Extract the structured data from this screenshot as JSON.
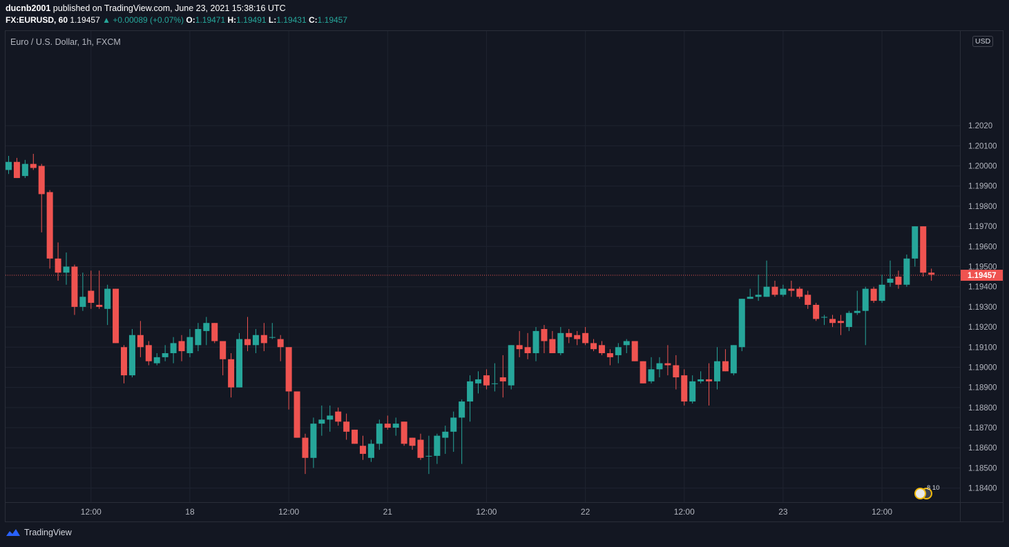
{
  "header": {
    "author": "ducnb2001",
    "published": "published on TradingView.com, June 23, 2021 15:38:16 UTC",
    "symbol_interval": "FX:EURUSD, 60",
    "last": "1.19457",
    "change": "▲ +0.00089 (+0.07%)",
    "o_label": "O:",
    "o_value": "1.19471",
    "h_label": "H:",
    "h_value": "1.19491",
    "l_label": "L:",
    "l_value": "1.19431",
    "c_label": "C:",
    "c_value": "1.19457"
  },
  "symbol_title": "Euro / U.S. Dollar, 1h, FXCM",
  "currency_badge": "USD",
  "footer": {
    "brand": "TradingView"
  },
  "event_badge": {
    "counts": "8 10"
  },
  "colors": {
    "background": "#131722",
    "up": "#26a69a",
    "down": "#ef5350",
    "grid": "#1f2430",
    "price_line": "#ef5350"
  },
  "chart_data": {
    "type": "candlestick",
    "title": "Euro / U.S. Dollar, 1h, FXCM",
    "ylim": [
      1.1833,
      1.2067
    ],
    "y_ticks": [
      {
        "value": 1.184,
        "label": "1.18400"
      },
      {
        "value": 1.185,
        "label": "1.18500"
      },
      {
        "value": 1.186,
        "label": "1.18600"
      },
      {
        "value": 1.187,
        "label": "1.18700"
      },
      {
        "value": 1.188,
        "label": "1.18800"
      },
      {
        "value": 1.189,
        "label": "1.18900"
      },
      {
        "value": 1.19,
        "label": "1.19000"
      },
      {
        "value": 1.191,
        "label": "1.19100"
      },
      {
        "value": 1.192,
        "label": "1.19200"
      },
      {
        "value": 1.193,
        "label": "1.19300"
      },
      {
        "value": 1.194,
        "label": "1.19400"
      },
      {
        "value": 1.195,
        "label": "1.19500"
      },
      {
        "value": 1.196,
        "label": "1.19600"
      },
      {
        "value": 1.197,
        "label": "1.19700"
      },
      {
        "value": 1.198,
        "label": "1.19800"
      },
      {
        "value": 1.199,
        "label": "1.19900"
      },
      {
        "value": 1.2,
        "label": "1.20000"
      },
      {
        "value": 1.201,
        "label": "1.20100"
      },
      {
        "value": 1.202,
        "label": "1.2020"
      }
    ],
    "x_ticks": [
      {
        "index": 10,
        "label": "12:00"
      },
      {
        "index": 22,
        "label": "18"
      },
      {
        "index": 34,
        "label": "12:00"
      },
      {
        "index": 46,
        "label": "21"
      },
      {
        "index": 58,
        "label": "12:00"
      },
      {
        "index": 70,
        "label": "22"
      },
      {
        "index": 82,
        "label": "12:00"
      },
      {
        "index": 94,
        "label": "23"
      },
      {
        "index": 106,
        "label": "12:00"
      }
    ],
    "last_price": {
      "value": 1.19457,
      "label": "1.19457"
    },
    "candles": [
      {
        "o": 1.1998,
        "h": 1.2005,
        "l": 1.1996,
        "c": 1.2002
      },
      {
        "o": 1.2002,
        "h": 1.2004,
        "l": 1.1994,
        "c": 1.1994
      },
      {
        "o": 1.1995,
        "h": 1.2003,
        "l": 1.1994,
        "c": 1.2001
      },
      {
        "o": 1.2001,
        "h": 1.2006,
        "l": 1.1998,
        "c": 1.1999
      },
      {
        "o": 1.2,
        "h": 1.2001,
        "l": 1.1967,
        "c": 1.1986
      },
      {
        "o": 1.1987,
        "h": 1.1988,
        "l": 1.1949,
        "c": 1.1954
      },
      {
        "o": 1.1954,
        "h": 1.1962,
        "l": 1.1943,
        "c": 1.1947
      },
      {
        "o": 1.1947,
        "h": 1.1957,
        "l": 1.1941,
        "c": 1.195
      },
      {
        "o": 1.195,
        "h": 1.1951,
        "l": 1.1926,
        "c": 1.193
      },
      {
        "o": 1.193,
        "h": 1.1947,
        "l": 1.1928,
        "c": 1.1935
      },
      {
        "o": 1.1938,
        "h": 1.1948,
        "l": 1.1929,
        "c": 1.1932
      },
      {
        "o": 1.1931,
        "h": 1.1948,
        "l": 1.1929,
        "c": 1.193
      },
      {
        "o": 1.1929,
        "h": 1.1941,
        "l": 1.1921,
        "c": 1.1939
      },
      {
        "o": 1.1939,
        "h": 1.1939,
        "l": 1.1912,
        "c": 1.1912
      },
      {
        "o": 1.191,
        "h": 1.1911,
        "l": 1.1892,
        "c": 1.1896
      },
      {
        "o": 1.1896,
        "h": 1.1919,
        "l": 1.1895,
        "c": 1.1916
      },
      {
        "o": 1.1916,
        "h": 1.1923,
        "l": 1.1905,
        "c": 1.191
      },
      {
        "o": 1.1911,
        "h": 1.1913,
        "l": 1.1901,
        "c": 1.1903
      },
      {
        "o": 1.1902,
        "h": 1.1907,
        "l": 1.1901,
        "c": 1.1905
      },
      {
        "o": 1.1905,
        "h": 1.1911,
        "l": 1.1903,
        "c": 1.1907
      },
      {
        "o": 1.1907,
        "h": 1.1915,
        "l": 1.1902,
        "c": 1.1912
      },
      {
        "o": 1.1913,
        "h": 1.1916,
        "l": 1.1903,
        "c": 1.1908
      },
      {
        "o": 1.1907,
        "h": 1.1919,
        "l": 1.1905,
        "c": 1.1915
      },
      {
        "o": 1.1911,
        "h": 1.1922,
        "l": 1.1908,
        "c": 1.1919
      },
      {
        "o": 1.1918,
        "h": 1.1925,
        "l": 1.1911,
        "c": 1.1922
      },
      {
        "o": 1.1922,
        "h": 1.1922,
        "l": 1.1912,
        "c": 1.1913
      },
      {
        "o": 1.1913,
        "h": 1.1913,
        "l": 1.1896,
        "c": 1.1904
      },
      {
        "o": 1.1904,
        "h": 1.1907,
        "l": 1.1885,
        "c": 1.189
      },
      {
        "o": 1.189,
        "h": 1.1917,
        "l": 1.189,
        "c": 1.1914
      },
      {
        "o": 1.1914,
        "h": 1.1925,
        "l": 1.1908,
        "c": 1.1911
      },
      {
        "o": 1.1911,
        "h": 1.1919,
        "l": 1.1907,
        "c": 1.1916
      },
      {
        "o": 1.1916,
        "h": 1.1922,
        "l": 1.1908,
        "c": 1.1912
      },
      {
        "o": 1.1915,
        "h": 1.1922,
        "l": 1.1914,
        "c": 1.1915
      },
      {
        "o": 1.1914,
        "h": 1.1916,
        "l": 1.1903,
        "c": 1.191
      },
      {
        "o": 1.191,
        "h": 1.191,
        "l": 1.1879,
        "c": 1.1888
      },
      {
        "o": 1.1888,
        "h": 1.1888,
        "l": 1.1865,
        "c": 1.1865
      },
      {
        "o": 1.1865,
        "h": 1.1867,
        "l": 1.1847,
        "c": 1.1855
      },
      {
        "o": 1.1855,
        "h": 1.1875,
        "l": 1.185,
        "c": 1.1872
      },
      {
        "o": 1.1872,
        "h": 1.1881,
        "l": 1.1866,
        "c": 1.1874
      },
      {
        "o": 1.1874,
        "h": 1.1881,
        "l": 1.1868,
        "c": 1.1876
      },
      {
        "o": 1.1878,
        "h": 1.188,
        "l": 1.1871,
        "c": 1.1873
      },
      {
        "o": 1.1873,
        "h": 1.1877,
        "l": 1.1864,
        "c": 1.1868
      },
      {
        "o": 1.1869,
        "h": 1.1869,
        "l": 1.1862,
        "c": 1.1862
      },
      {
        "o": 1.1861,
        "h": 1.1866,
        "l": 1.1854,
        "c": 1.1857
      },
      {
        "o": 1.1855,
        "h": 1.1864,
        "l": 1.1853,
        "c": 1.1862
      },
      {
        "o": 1.1862,
        "h": 1.1874,
        "l": 1.1859,
        "c": 1.1872
      },
      {
        "o": 1.1872,
        "h": 1.1876,
        "l": 1.1869,
        "c": 1.187
      },
      {
        "o": 1.187,
        "h": 1.1875,
        "l": 1.1866,
        "c": 1.1872
      },
      {
        "o": 1.1873,
        "h": 1.1873,
        "l": 1.1861,
        "c": 1.1862
      },
      {
        "o": 1.1865,
        "h": 1.1865,
        "l": 1.1859,
        "c": 1.1861
      },
      {
        "o": 1.1864,
        "h": 1.1867,
        "l": 1.1854,
        "c": 1.1855
      },
      {
        "o": 1.1856,
        "h": 1.1866,
        "l": 1.1847,
        "c": 1.1856
      },
      {
        "o": 1.1856,
        "h": 1.1867,
        "l": 1.1852,
        "c": 1.1866
      },
      {
        "o": 1.1865,
        "h": 1.1871,
        "l": 1.1857,
        "c": 1.1868
      },
      {
        "o": 1.1868,
        "h": 1.1878,
        "l": 1.1858,
        "c": 1.1875
      },
      {
        "o": 1.1875,
        "h": 1.1884,
        "l": 1.1852,
        "c": 1.1883
      },
      {
        "o": 1.1883,
        "h": 1.1896,
        "l": 1.1873,
        "c": 1.1893
      },
      {
        "o": 1.1892,
        "h": 1.1898,
        "l": 1.1887,
        "c": 1.1894
      },
      {
        "o": 1.1896,
        "h": 1.1899,
        "l": 1.1889,
        "c": 1.1891
      },
      {
        "o": 1.1892,
        "h": 1.1902,
        "l": 1.1888,
        "c": 1.1892
      },
      {
        "o": 1.1895,
        "h": 1.1906,
        "l": 1.1885,
        "c": 1.1893
      },
      {
        "o": 1.1891,
        "h": 1.1911,
        "l": 1.1889,
        "c": 1.1911
      },
      {
        "o": 1.1911,
        "h": 1.1918,
        "l": 1.1905,
        "c": 1.1909
      },
      {
        "o": 1.191,
        "h": 1.1917,
        "l": 1.1904,
        "c": 1.1907
      },
      {
        "o": 1.1907,
        "h": 1.192,
        "l": 1.1903,
        "c": 1.1918
      },
      {
        "o": 1.1919,
        "h": 1.1921,
        "l": 1.1907,
        "c": 1.1913
      },
      {
        "o": 1.1914,
        "h": 1.1918,
        "l": 1.1907,
        "c": 1.1907
      },
      {
        "o": 1.1907,
        "h": 1.192,
        "l": 1.1906,
        "c": 1.1917
      },
      {
        "o": 1.1917,
        "h": 1.1919,
        "l": 1.1912,
        "c": 1.1915
      },
      {
        "o": 1.1916,
        "h": 1.1918,
        "l": 1.1911,
        "c": 1.1914
      },
      {
        "o": 1.1917,
        "h": 1.192,
        "l": 1.1911,
        "c": 1.1912
      },
      {
        "o": 1.1912,
        "h": 1.1914,
        "l": 1.1908,
        "c": 1.1909
      },
      {
        "o": 1.1911,
        "h": 1.1913,
        "l": 1.1906,
        "c": 1.1907
      },
      {
        "o": 1.1907,
        "h": 1.1909,
        "l": 1.1901,
        "c": 1.1905
      },
      {
        "o": 1.1906,
        "h": 1.1912,
        "l": 1.1902,
        "c": 1.191
      },
      {
        "o": 1.1911,
        "h": 1.1914,
        "l": 1.1907,
        "c": 1.1913
      },
      {
        "o": 1.1913,
        "h": 1.1913,
        "l": 1.1903,
        "c": 1.1903
      },
      {
        "o": 1.1903,
        "h": 1.1903,
        "l": 1.1892,
        "c": 1.1892
      },
      {
        "o": 1.1893,
        "h": 1.1905,
        "l": 1.1892,
        "c": 1.1899
      },
      {
        "o": 1.1899,
        "h": 1.1905,
        "l": 1.1895,
        "c": 1.1902
      },
      {
        "o": 1.1902,
        "h": 1.1911,
        "l": 1.1896,
        "c": 1.1901
      },
      {
        "o": 1.1901,
        "h": 1.1906,
        "l": 1.1889,
        "c": 1.1895
      },
      {
        "o": 1.1896,
        "h": 1.1899,
        "l": 1.1881,
        "c": 1.1883
      },
      {
        "o": 1.1883,
        "h": 1.1896,
        "l": 1.1882,
        "c": 1.1893
      },
      {
        "o": 1.1893,
        "h": 1.1898,
        "l": 1.1892,
        "c": 1.1894
      },
      {
        "o": 1.1894,
        "h": 1.1902,
        "l": 1.1881,
        "c": 1.1893
      },
      {
        "o": 1.1893,
        "h": 1.191,
        "l": 1.1889,
        "c": 1.1903
      },
      {
        "o": 1.1903,
        "h": 1.1909,
        "l": 1.1898,
        "c": 1.1898
      },
      {
        "o": 1.1897,
        "h": 1.1911,
        "l": 1.1896,
        "c": 1.1911
      },
      {
        "o": 1.191,
        "h": 1.1934,
        "l": 1.1908,
        "c": 1.1934
      },
      {
        "o": 1.1934,
        "h": 1.1939,
        "l": 1.1934,
        "c": 1.1935
      },
      {
        "o": 1.1935,
        "h": 1.1946,
        "l": 1.1933,
        "c": 1.1936
      },
      {
        "o": 1.1935,
        "h": 1.1953,
        "l": 1.1935,
        "c": 1.194
      },
      {
        "o": 1.194,
        "h": 1.1943,
        "l": 1.1935,
        "c": 1.1936
      },
      {
        "o": 1.1936,
        "h": 1.1941,
        "l": 1.1935,
        "c": 1.1939
      },
      {
        "o": 1.1939,
        "h": 1.1943,
        "l": 1.1935,
        "c": 1.1938
      },
      {
        "o": 1.1939,
        "h": 1.194,
        "l": 1.1934,
        "c": 1.1935
      },
      {
        "o": 1.1936,
        "h": 1.1938,
        "l": 1.1929,
        "c": 1.1931
      },
      {
        "o": 1.1931,
        "h": 1.1932,
        "l": 1.1923,
        "c": 1.1924
      },
      {
        "o": 1.1925,
        "h": 1.1926,
        "l": 1.1921,
        "c": 1.1925
      },
      {
        "o": 1.1924,
        "h": 1.1926,
        "l": 1.192,
        "c": 1.1922
      },
      {
        "o": 1.1923,
        "h": 1.1926,
        "l": 1.1916,
        "c": 1.1922
      },
      {
        "o": 1.192,
        "h": 1.1928,
        "l": 1.1918,
        "c": 1.1927
      },
      {
        "o": 1.1927,
        "h": 1.1938,
        "l": 1.1926,
        "c": 1.1928
      },
      {
        "o": 1.1928,
        "h": 1.194,
        "l": 1.1911,
        "c": 1.1939
      },
      {
        "o": 1.1939,
        "h": 1.194,
        "l": 1.1932,
        "c": 1.1933
      },
      {
        "o": 1.1933,
        "h": 1.1946,
        "l": 1.1932,
        "c": 1.1941
      },
      {
        "o": 1.1942,
        "h": 1.1953,
        "l": 1.194,
        "c": 1.1944
      },
      {
        "o": 1.1945,
        "h": 1.1948,
        "l": 1.1939,
        "c": 1.1941
      },
      {
        "o": 1.1941,
        "h": 1.1956,
        "l": 1.194,
        "c": 1.1954
      },
      {
        "o": 1.1954,
        "h": 1.197,
        "l": 1.195,
        "c": 1.197
      },
      {
        "o": 1.197,
        "h": 1.197,
        "l": 1.1945,
        "c": 1.1947
      },
      {
        "o": 1.1947,
        "h": 1.1949,
        "l": 1.1943,
        "c": 1.1946
      }
    ]
  }
}
